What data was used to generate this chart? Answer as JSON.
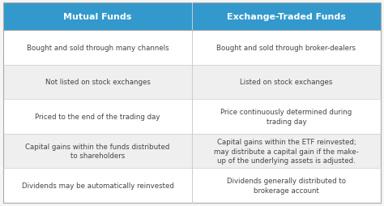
{
  "col1_header": "Mutual Funds",
  "col2_header": "Exchange-Traded Funds",
  "header_bg_color": "#3399cc",
  "header_text_color": "#ffffff",
  "row_bg_colors": [
    "#ffffff",
    "#efefef",
    "#ffffff",
    "#efefef",
    "#ffffff"
  ],
  "text_color": "#444444",
  "divider_color": "#cccccc",
  "outer_border_color": "#aaaaaa",
  "fig_bg_color": "#f5f5f5",
  "col1_rows": [
    "Bought and sold through many channels",
    "Not listed on stock exchanges",
    "Priced to the end of the trading day",
    "Capital gains within the funds distributed\nto shareholders",
    "Dividends may be automatically reinvested"
  ],
  "col2_rows": [
    "Bought and sold through broker-dealers",
    "Listed on stock exchanges",
    "Price continuously determined during\ntrading day",
    "Capital gains within the ETF reinvested;\nmay distribute a capital gain if the make-\nup of the underlying assets is adjusted.",
    "Dividends generally distributed to\nbrokerage account"
  ],
  "figsize": [
    4.74,
    2.55
  ],
  "dpi": 100,
  "header_fontsize": 8.0,
  "body_fontsize": 6.2
}
